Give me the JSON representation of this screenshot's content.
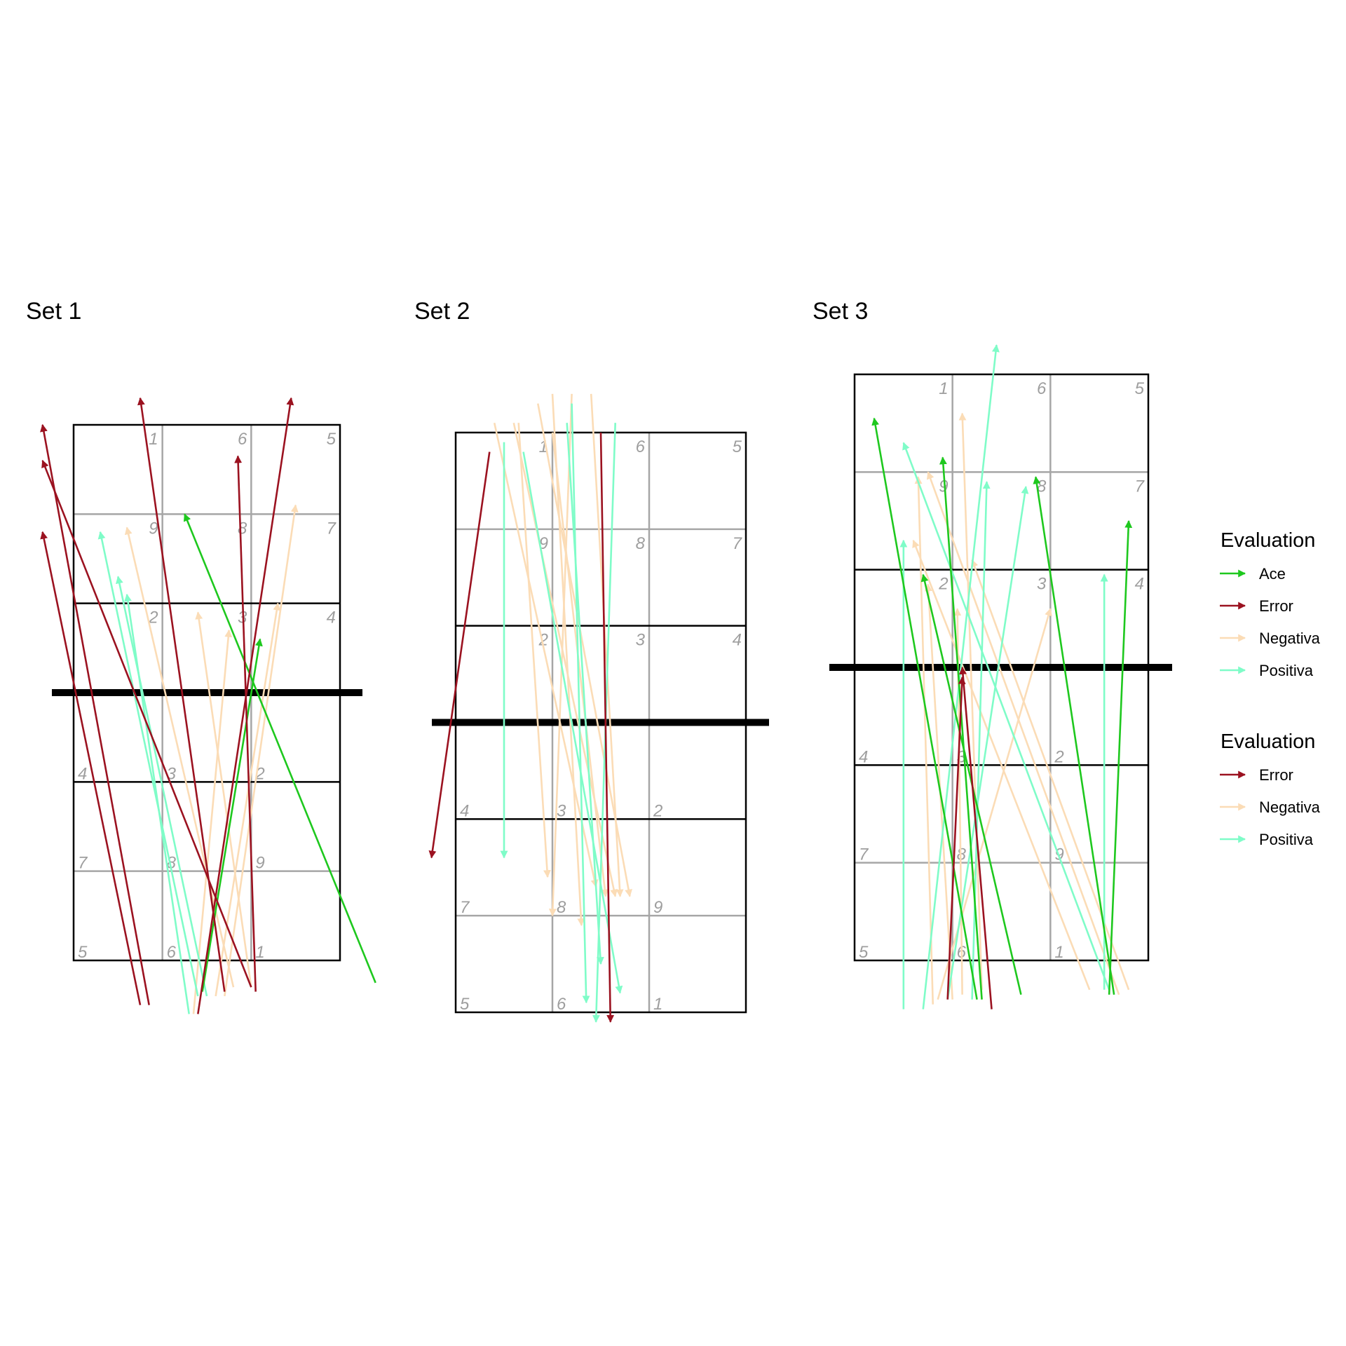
{
  "colors": {
    "Ace": "#1ec81e",
    "Error": "#9b1220",
    "Negativa": "#fbdcb6",
    "Positiva": "#7ffcc8",
    "court_line": "#000000",
    "zone_line": "#a6a6a6",
    "net": "#000000"
  },
  "zone_labels": {
    "far": [
      "1",
      "6",
      "5",
      "9",
      "8",
      "7",
      "2",
      "3",
      "4"
    ],
    "near": [
      "4",
      "3",
      "2",
      "7",
      "8",
      "9",
      "5",
      "6",
      "1"
    ]
  },
  "legends": [
    {
      "title": "Evaluation",
      "items": [
        "Ace",
        "Error",
        "Negativa",
        "Positiva"
      ]
    },
    {
      "title": "Evaluation",
      "items": [
        "Error",
        "Negativa",
        "Positiva"
      ]
    }
  ],
  "chart_data": [
    {
      "type": "scatter",
      "title": "Set 1",
      "xlim": [
        0.5,
        3.5
      ],
      "ylim": [
        0.5,
        6.5
      ],
      "net_y": 3.5,
      "arrows": [
        {
          "eval": "Error",
          "x": [
            1.25,
            0.15
          ],
          "y": [
            0.0,
            5.3
          ]
        },
        {
          "eval": "Error",
          "x": [
            1.35,
            0.15
          ],
          "y": [
            0.0,
            6.5
          ]
        },
        {
          "eval": "Error",
          "x": [
            2.5,
            0.15
          ],
          "y": [
            0.2,
            6.1
          ]
        },
        {
          "eval": "Error",
          "x": [
            2.2,
            1.25
          ],
          "y": [
            0.15,
            6.8
          ]
        },
        {
          "eval": "Error",
          "x": [
            2.55,
            2.35
          ],
          "y": [
            0.15,
            6.15
          ]
        },
        {
          "eval": "Error",
          "x": [
            1.9,
            2.95
          ],
          "y": [
            -0.1,
            6.8
          ]
        },
        {
          "eval": "Ace",
          "x": [
            1.95,
            2.6
          ],
          "y": [
            0.15,
            4.1
          ]
        },
        {
          "eval": "Ace",
          "x": [
            3.9,
            1.75
          ],
          "y": [
            0.25,
            5.5
          ]
        },
        {
          "eval": "Negativa",
          "x": [
            2.3,
            1.1
          ],
          "y": [
            0.2,
            5.35
          ]
        },
        {
          "eval": "Negativa",
          "x": [
            2.5,
            1.9
          ],
          "y": [
            0.2,
            4.4
          ]
        },
        {
          "eval": "Negativa",
          "x": [
            2.2,
            3.0
          ],
          "y": [
            0.1,
            5.6
          ]
        },
        {
          "eval": "Negativa",
          "x": [
            1.85,
            2.25
          ],
          "y": [
            -0.1,
            4.2
          ]
        },
        {
          "eval": "Negativa",
          "x": [
            2.1,
            2.8
          ],
          "y": [
            0.1,
            4.5
          ]
        },
        {
          "eval": "Positiva",
          "x": [
            1.9,
            0.8
          ],
          "y": [
            0.1,
            5.3
          ]
        },
        {
          "eval": "Positiva",
          "x": [
            1.8,
            1.1
          ],
          "y": [
            -0.1,
            4.6
          ]
        },
        {
          "eval": "Positiva",
          "x": [
            2.0,
            1.0
          ],
          "y": [
            0.1,
            4.8
          ]
        }
      ]
    },
    {
      "type": "scatter",
      "title": "Set 2",
      "xlim": [
        0.5,
        3.5
      ],
      "ylim": [
        0.5,
        6.5
      ],
      "net_y": 3.5,
      "arrows": [
        {
          "eval": "Error",
          "x": [
            0.85,
            0.25
          ],
          "y": [
            6.3,
            2.1
          ]
        },
        {
          "eval": "Error",
          "x": [
            2.0,
            2.1
          ],
          "y": [
            6.5,
            0.4
          ]
        },
        {
          "eval": "Negativa",
          "x": [
            0.9,
            1.95
          ],
          "y": [
            6.6,
            1.8
          ]
        },
        {
          "eval": "Negativa",
          "x": [
            1.1,
            2.15
          ],
          "y": [
            6.6,
            1.7
          ]
        },
        {
          "eval": "Negativa",
          "x": [
            1.5,
            1.8
          ],
          "y": [
            6.9,
            1.4
          ]
        },
        {
          "eval": "Negativa",
          "x": [
            1.7,
            1.5
          ],
          "y": [
            6.9,
            1.5
          ]
        },
        {
          "eval": "Negativa",
          "x": [
            1.15,
            1.45
          ],
          "y": [
            6.6,
            1.9
          ]
        },
        {
          "eval": "Negativa",
          "x": [
            1.35,
            2.3
          ],
          "y": [
            6.8,
            1.7
          ]
        },
        {
          "eval": "Negativa",
          "x": [
            1.5,
            2.05
          ],
          "y": [
            6.5,
            1.7
          ]
        },
        {
          "eval": "Negativa",
          "x": [
            1.9,
            2.2
          ],
          "y": [
            6.9,
            1.7
          ]
        },
        {
          "eval": "Positiva",
          "x": [
            1.0,
            1.0
          ],
          "y": [
            6.4,
            2.1
          ]
        },
        {
          "eval": "Positiva",
          "x": [
            2.15,
            1.95
          ],
          "y": [
            6.6,
            0.4
          ]
        },
        {
          "eval": "Positiva",
          "x": [
            1.2,
            2.2
          ],
          "y": [
            6.3,
            0.7
          ]
        },
        {
          "eval": "Positiva",
          "x": [
            1.65,
            2.0
          ],
          "y": [
            6.6,
            1.0
          ]
        },
        {
          "eval": "Positiva",
          "x": [
            1.7,
            1.85
          ],
          "y": [
            6.8,
            0.6
          ]
        }
      ]
    },
    {
      "type": "scatter",
      "title": "Set 3",
      "xlim": [
        0.5,
        3.5
      ],
      "ylim": [
        0.5,
        6.5
      ],
      "net_y": 3.5,
      "arrows": [
        {
          "eval": "Error",
          "x": [
            1.9,
            1.6
          ],
          "y": [
            0.0,
            3.5
          ]
        },
        {
          "eval": "Error",
          "x": [
            1.45,
            1.6
          ],
          "y": [
            0.1,
            3.4
          ]
        },
        {
          "eval": "Ace",
          "x": [
            1.75,
            0.7
          ],
          "y": [
            0.1,
            6.05
          ]
        },
        {
          "eval": "Ace",
          "x": [
            1.8,
            1.4
          ],
          "y": [
            0.1,
            5.65
          ]
        },
        {
          "eval": "Ace",
          "x": [
            2.2,
            1.2
          ],
          "y": [
            0.15,
            4.45
          ]
        },
        {
          "eval": "Ace",
          "x": [
            3.15,
            2.35
          ],
          "y": [
            0.15,
            5.45
          ]
        },
        {
          "eval": "Ace",
          "x": [
            3.1,
            3.3
          ],
          "y": [
            0.15,
            5.0
          ]
        },
        {
          "eval": "Negativa",
          "x": [
            1.3,
            1.15
          ],
          "y": [
            0.05,
            5.45
          ]
        },
        {
          "eval": "Negativa",
          "x": [
            1.8,
            1.6
          ],
          "y": [
            0.2,
            6.1
          ]
        },
        {
          "eval": "Negativa",
          "x": [
            3.2,
            1.25
          ],
          "y": [
            0.15,
            5.5
          ]
        },
        {
          "eval": "Negativa",
          "x": [
            3.3,
            1.7
          ],
          "y": [
            0.2,
            4.6
          ]
        },
        {
          "eval": "Negativa",
          "x": [
            2.9,
            1.1
          ],
          "y": [
            0.2,
            4.8
          ]
        },
        {
          "eval": "Negativa",
          "x": [
            1.5,
            1.25
          ],
          "y": [
            0.1,
            4.35
          ]
        },
        {
          "eval": "Negativa",
          "x": [
            1.6,
            1.55
          ],
          "y": [
            0.15,
            4.1
          ]
        },
        {
          "eval": "Negativa",
          "x": [
            1.35,
            2.5
          ],
          "y": [
            0.1,
            4.1
          ]
        },
        {
          "eval": "Positiva",
          "x": [
            1.0,
            1.0
          ],
          "y": [
            0.0,
            4.8
          ]
        },
        {
          "eval": "Positiva",
          "x": [
            1.2,
            1.95
          ],
          "y": [
            0.0,
            6.8
          ]
        },
        {
          "eval": "Positiva",
          "x": [
            1.7,
            1.85
          ],
          "y": [
            0.1,
            5.4
          ]
        },
        {
          "eval": "Positiva",
          "x": [
            3.1,
            1.0
          ],
          "y": [
            0.2,
            5.8
          ]
        },
        {
          "eval": "Positiva",
          "x": [
            3.05,
            3.05
          ],
          "y": [
            0.2,
            4.45
          ]
        },
        {
          "eval": "Positiva",
          "x": [
            1.45,
            2.25
          ],
          "y": [
            0.1,
            5.35
          ]
        }
      ]
    }
  ]
}
